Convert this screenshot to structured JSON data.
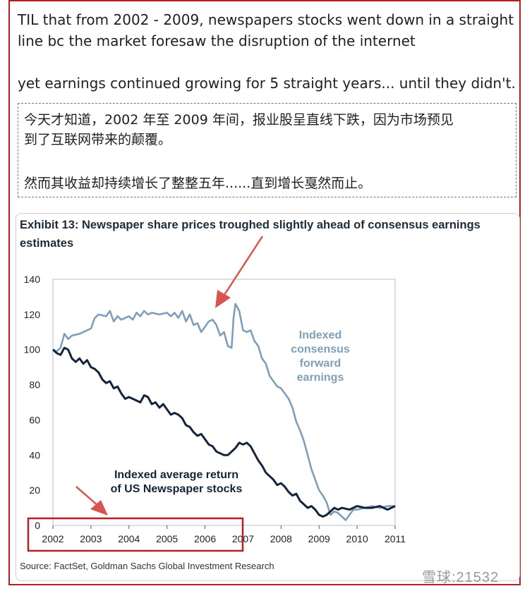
{
  "tweet": {
    "line1": "TIL that from 2002 - 2009, newspapers stocks went down in a straight",
    "line2": "line bc the market foresaw the disruption of the internet",
    "line3": "yet earnings continued growing for 5 straight years... until they didn't."
  },
  "translation": {
    "line1": "今天才知道，2002 年至 2009 年间，报业股呈直线下跌，因为市场预见",
    "line2": "到了互联网带来的颠覆。",
    "line3": "然而其收益却持续增长了整整五年......直到增长戛然而止。"
  },
  "exhibit": {
    "title_line1": "Exhibit 13: Newspaper share prices troughed slightly ahead of consensus earnings",
    "title_line2": "estimates",
    "source": "Source: FactSet, Goldman Sachs Global Investment Research"
  },
  "watermark": "雪球:21532",
  "colors": {
    "frame": "#b51f24",
    "earnings_line": "#7f9fb8",
    "stock_line": "#13243a",
    "arrow": "#d9534f"
  },
  "chart_data": {
    "type": "line",
    "xlim": [
      2002,
      2011
    ],
    "ylim": [
      0,
      140
    ],
    "x_ticks": [
      2002,
      2003,
      2004,
      2005,
      2006,
      2007,
      2008,
      2009,
      2010,
      2011
    ],
    "y_ticks": [
      0,
      20,
      40,
      60,
      80,
      100,
      120,
      140
    ],
    "grid": false,
    "series": [
      {
        "name": "Indexed consensus forward earnings",
        "label_lines": [
          "Indexed",
          "consensus",
          "forward",
          "earnings"
        ],
        "color": "#7f9fb8",
        "points": [
          [
            2002.0,
            100
          ],
          [
            2002.1,
            99
          ],
          [
            2002.2,
            101
          ],
          [
            2002.3,
            109
          ],
          [
            2002.4,
            106
          ],
          [
            2002.5,
            108
          ],
          [
            2002.7,
            109
          ],
          [
            2002.9,
            111
          ],
          [
            2003.0,
            112
          ],
          [
            2003.1,
            118
          ],
          [
            2003.2,
            120
          ],
          [
            2003.4,
            119
          ],
          [
            2003.5,
            122
          ],
          [
            2003.6,
            116
          ],
          [
            2003.7,
            119
          ],
          [
            2003.8,
            117
          ],
          [
            2003.9,
            118
          ],
          [
            2004.0,
            119
          ],
          [
            2004.1,
            117
          ],
          [
            2004.2,
            121
          ],
          [
            2004.3,
            119
          ],
          [
            2004.4,
            122
          ],
          [
            2004.5,
            120
          ],
          [
            2004.6,
            121
          ],
          [
            2004.8,
            120
          ],
          [
            2005.0,
            121
          ],
          [
            2005.1,
            119
          ],
          [
            2005.2,
            121
          ],
          [
            2005.3,
            118
          ],
          [
            2005.4,
            122
          ],
          [
            2005.5,
            116
          ],
          [
            2005.6,
            120
          ],
          [
            2005.7,
            114
          ],
          [
            2005.8,
            115
          ],
          [
            2005.9,
            110
          ],
          [
            2006.0,
            113
          ],
          [
            2006.1,
            116
          ],
          [
            2006.2,
            117
          ],
          [
            2006.3,
            114
          ],
          [
            2006.4,
            108
          ],
          [
            2006.5,
            110
          ],
          [
            2006.6,
            102
          ],
          [
            2006.7,
            101
          ],
          [
            2006.75,
            118
          ],
          [
            2006.8,
            126
          ],
          [
            2006.9,
            122
          ],
          [
            2007.0,
            111
          ],
          [
            2007.1,
            110
          ],
          [
            2007.2,
            111
          ],
          [
            2007.3,
            105
          ],
          [
            2007.4,
            102
          ],
          [
            2007.5,
            95
          ],
          [
            2007.6,
            92
          ],
          [
            2007.7,
            85
          ],
          [
            2007.8,
            82
          ],
          [
            2007.9,
            79
          ],
          [
            2008.0,
            78
          ],
          [
            2008.1,
            75
          ],
          [
            2008.2,
            72
          ],
          [
            2008.3,
            67
          ],
          [
            2008.4,
            59
          ],
          [
            2008.5,
            54
          ],
          [
            2008.6,
            48
          ],
          [
            2008.7,
            40
          ],
          [
            2008.8,
            32
          ],
          [
            2008.9,
            26
          ],
          [
            2009.0,
            20
          ],
          [
            2009.1,
            17
          ],
          [
            2009.2,
            13
          ],
          [
            2009.3,
            6
          ],
          [
            2009.4,
            8
          ],
          [
            2009.5,
            7
          ],
          [
            2009.6,
            5
          ],
          [
            2009.7,
            3
          ],
          [
            2009.8,
            6
          ],
          [
            2009.9,
            9
          ],
          [
            2010.0,
            9
          ],
          [
            2010.2,
            10
          ],
          [
            2010.4,
            11
          ],
          [
            2010.6,
            10
          ],
          [
            2010.8,
            11
          ],
          [
            2011.0,
            11
          ]
        ]
      },
      {
        "name": "Indexed average return of US Newspaper stocks",
        "label_lines": [
          "Indexed average return",
          "of US Newspaper stocks"
        ],
        "color": "#13243a",
        "points": [
          [
            2002.0,
            100
          ],
          [
            2002.1,
            98
          ],
          [
            2002.2,
            97
          ],
          [
            2002.3,
            101
          ],
          [
            2002.4,
            100
          ],
          [
            2002.5,
            95
          ],
          [
            2002.6,
            93
          ],
          [
            2002.7,
            95
          ],
          [
            2002.8,
            92
          ],
          [
            2002.9,
            94
          ],
          [
            2003.0,
            90
          ],
          [
            2003.1,
            89
          ],
          [
            2003.2,
            87
          ],
          [
            2003.3,
            83
          ],
          [
            2003.4,
            81
          ],
          [
            2003.5,
            82
          ],
          [
            2003.6,
            78
          ],
          [
            2003.7,
            79
          ],
          [
            2003.8,
            75
          ],
          [
            2003.9,
            72
          ],
          [
            2004.0,
            73
          ],
          [
            2004.1,
            72
          ],
          [
            2004.2,
            71
          ],
          [
            2004.3,
            70
          ],
          [
            2004.4,
            74
          ],
          [
            2004.5,
            73
          ],
          [
            2004.6,
            69
          ],
          [
            2004.7,
            70
          ],
          [
            2004.8,
            67
          ],
          [
            2004.9,
            69
          ],
          [
            2005.0,
            66
          ],
          [
            2005.1,
            63
          ],
          [
            2005.2,
            64
          ],
          [
            2005.3,
            63
          ],
          [
            2005.4,
            61
          ],
          [
            2005.5,
            57
          ],
          [
            2005.6,
            56
          ],
          [
            2005.7,
            53
          ],
          [
            2005.8,
            51
          ],
          [
            2005.9,
            52
          ],
          [
            2006.0,
            49
          ],
          [
            2006.1,
            46
          ],
          [
            2006.2,
            45
          ],
          [
            2006.3,
            42
          ],
          [
            2006.4,
            41
          ],
          [
            2006.5,
            40
          ],
          [
            2006.6,
            40
          ],
          [
            2006.7,
            42
          ],
          [
            2006.8,
            44
          ],
          [
            2006.9,
            47
          ],
          [
            2007.0,
            46
          ],
          [
            2007.1,
            47
          ],
          [
            2007.2,
            45
          ],
          [
            2007.3,
            41
          ],
          [
            2007.4,
            37
          ],
          [
            2007.5,
            34
          ],
          [
            2007.6,
            30
          ],
          [
            2007.7,
            28
          ],
          [
            2007.8,
            26
          ],
          [
            2007.9,
            23
          ],
          [
            2008.0,
            24
          ],
          [
            2008.1,
            22
          ],
          [
            2008.2,
            19
          ],
          [
            2008.3,
            17
          ],
          [
            2008.4,
            18
          ],
          [
            2008.5,
            14
          ],
          [
            2008.6,
            12
          ],
          [
            2008.7,
            10
          ],
          [
            2008.8,
            11
          ],
          [
            2008.9,
            9
          ],
          [
            2009.0,
            6
          ],
          [
            2009.1,
            5
          ],
          [
            2009.2,
            6
          ],
          [
            2009.3,
            8
          ],
          [
            2009.4,
            10
          ],
          [
            2009.5,
            9
          ],
          [
            2009.6,
            10
          ],
          [
            2009.8,
            9
          ],
          [
            2010.0,
            11
          ],
          [
            2010.2,
            10
          ],
          [
            2010.4,
            10
          ],
          [
            2010.6,
            11
          ],
          [
            2010.8,
            9
          ],
          [
            2011.0,
            11
          ]
        ]
      }
    ]
  }
}
